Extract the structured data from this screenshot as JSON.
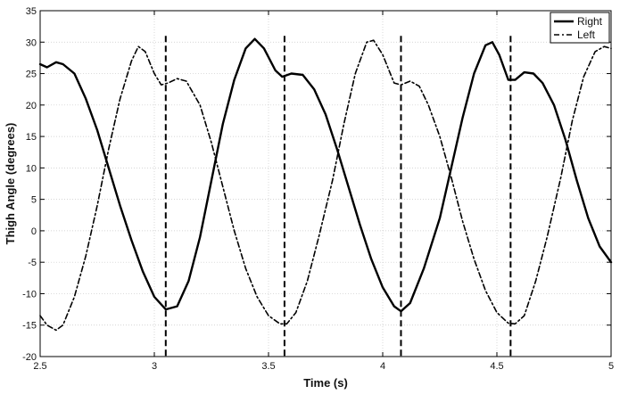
{
  "chart_data": {
    "type": "line",
    "title": "",
    "xlabel": "Time (s)",
    "ylabel": "Thigh Angle (degrees)",
    "xlim": [
      2.5,
      5
    ],
    "ylim": [
      -20,
      35
    ],
    "xticks": [
      2.5,
      3,
      3.5,
      4,
      4.5,
      5
    ],
    "yticks": [
      -20,
      -15,
      -10,
      -5,
      0,
      5,
      10,
      15,
      20,
      25,
      30,
      35
    ],
    "xtick_labels": [
      "2.5",
      "3",
      "3.5",
      "4",
      "4.5",
      "5"
    ],
    "ytick_labels": [
      "-20",
      "-15",
      "-10",
      "-5",
      "0",
      "5",
      "10",
      "15",
      "20",
      "25",
      "30",
      "35"
    ],
    "grid": true,
    "legend_position": "top-right",
    "series": [
      {
        "name": "Right",
        "style": "solid",
        "color": "#000000",
        "points": [
          [
            2.5,
            26.5
          ],
          [
            2.53,
            26.0
          ],
          [
            2.57,
            26.8
          ],
          [
            2.6,
            26.5
          ],
          [
            2.65,
            25.0
          ],
          [
            2.7,
            21.0
          ],
          [
            2.75,
            16.0
          ],
          [
            2.8,
            10.0
          ],
          [
            2.85,
            4.0
          ],
          [
            2.9,
            -1.5
          ],
          [
            2.95,
            -6.5
          ],
          [
            3.0,
            -10.5
          ],
          [
            3.05,
            -12.5
          ],
          [
            3.1,
            -12.0
          ],
          [
            3.15,
            -8.0
          ],
          [
            3.2,
            -1.0
          ],
          [
            3.25,
            8.0
          ],
          [
            3.3,
            17.0
          ],
          [
            3.35,
            24.0
          ],
          [
            3.4,
            29.0
          ],
          [
            3.44,
            30.5
          ],
          [
            3.48,
            29.0
          ],
          [
            3.53,
            25.5
          ],
          [
            3.56,
            24.5
          ],
          [
            3.6,
            25.0
          ],
          [
            3.65,
            24.8
          ],
          [
            3.7,
            22.5
          ],
          [
            3.75,
            18.5
          ],
          [
            3.8,
            13.0
          ],
          [
            3.85,
            7.0
          ],
          [
            3.9,
            1.0
          ],
          [
            3.95,
            -4.5
          ],
          [
            4.0,
            -9.0
          ],
          [
            4.05,
            -12.0
          ],
          [
            4.08,
            -12.8
          ],
          [
            4.12,
            -11.5
          ],
          [
            4.18,
            -6.0
          ],
          [
            4.25,
            2.0
          ],
          [
            4.3,
            10.0
          ],
          [
            4.35,
            18.0
          ],
          [
            4.4,
            25.0
          ],
          [
            4.45,
            29.5
          ],
          [
            4.48,
            30.0
          ],
          [
            4.51,
            28.0
          ],
          [
            4.55,
            24.0
          ],
          [
            4.58,
            24.0
          ],
          [
            4.62,
            25.2
          ],
          [
            4.66,
            25.0
          ],
          [
            4.7,
            23.5
          ],
          [
            4.75,
            20.0
          ],
          [
            4.8,
            14.5
          ],
          [
            4.85,
            8.0
          ],
          [
            4.9,
            2.0
          ],
          [
            4.95,
            -2.5
          ],
          [
            5.0,
            -5.0
          ]
        ]
      },
      {
        "name": "Left",
        "style": "dash-dot",
        "color": "#000000",
        "points": [
          [
            2.5,
            -13.5
          ],
          [
            2.53,
            -15.0
          ],
          [
            2.57,
            -15.8
          ],
          [
            2.6,
            -15.0
          ],
          [
            2.65,
            -10.5
          ],
          [
            2.7,
            -4.0
          ],
          [
            2.75,
            4.0
          ],
          [
            2.8,
            13.0
          ],
          [
            2.85,
            21.0
          ],
          [
            2.9,
            27.0
          ],
          [
            2.93,
            29.3
          ],
          [
            2.96,
            28.5
          ],
          [
            3.0,
            25.0
          ],
          [
            3.03,
            23.2
          ],
          [
            3.06,
            23.5
          ],
          [
            3.1,
            24.2
          ],
          [
            3.14,
            23.8
          ],
          [
            3.2,
            20.0
          ],
          [
            3.25,
            14.0
          ],
          [
            3.3,
            7.0
          ],
          [
            3.35,
            0.0
          ],
          [
            3.4,
            -6.0
          ],
          [
            3.45,
            -10.5
          ],
          [
            3.5,
            -13.5
          ],
          [
            3.55,
            -14.8
          ],
          [
            3.58,
            -14.8
          ],
          [
            3.62,
            -13.0
          ],
          [
            3.67,
            -8.0
          ],
          [
            3.72,
            -1.0
          ],
          [
            3.78,
            8.0
          ],
          [
            3.83,
            17.0
          ],
          [
            3.88,
            25.0
          ],
          [
            3.93,
            30.0
          ],
          [
            3.96,
            30.3
          ],
          [
            4.0,
            28.0
          ],
          [
            4.05,
            23.5
          ],
          [
            4.08,
            23.2
          ],
          [
            4.12,
            23.8
          ],
          [
            4.16,
            23.0
          ],
          [
            4.2,
            20.0
          ],
          [
            4.25,
            15.0
          ],
          [
            4.3,
            8.5
          ],
          [
            4.35,
            1.5
          ],
          [
            4.4,
            -4.5
          ],
          [
            4.45,
            -9.5
          ],
          [
            4.5,
            -13.0
          ],
          [
            4.55,
            -14.7
          ],
          [
            4.58,
            -14.8
          ],
          [
            4.62,
            -13.5
          ],
          [
            4.67,
            -8.0
          ],
          [
            4.72,
            -1.0
          ],
          [
            4.78,
            8.5
          ],
          [
            4.83,
            17.5
          ],
          [
            4.88,
            24.5
          ],
          [
            4.93,
            28.5
          ],
          [
            4.97,
            29.3
          ],
          [
            5.0,
            29.0
          ]
        ]
      }
    ],
    "vertical_markers": [
      3.05,
      3.57,
      4.08,
      4.56
    ],
    "marker_style": "dashed"
  }
}
